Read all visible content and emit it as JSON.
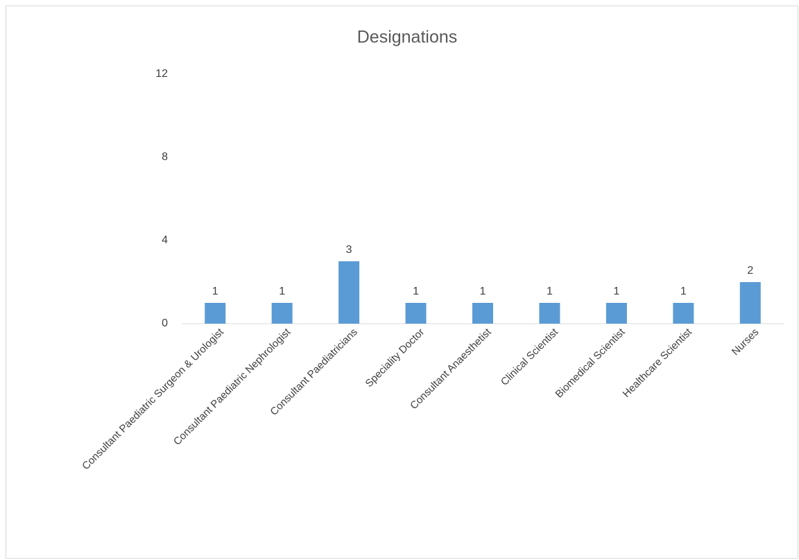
{
  "chart_data": {
    "type": "bar",
    "title": "Designations",
    "categories": [
      "Consultant Paediatric Surgeon & Urologist",
      "Consultant Paediatric Nephrologist",
      "Consultant Paediatricians",
      "Speciality Doctor",
      "Consultant Anaesthetist",
      "Clinical Scientist",
      "Biomedical Scientist",
      "Healthcare Scientist",
      "Nurses"
    ],
    "values": [
      1,
      1,
      3,
      1,
      1,
      1,
      1,
      1,
      2
    ],
    "color": "#5b9bd5",
    "ylim": [
      0,
      12
    ],
    "yticks": [
      0,
      4,
      8,
      12
    ],
    "grid": false,
    "data_labels": true
  }
}
